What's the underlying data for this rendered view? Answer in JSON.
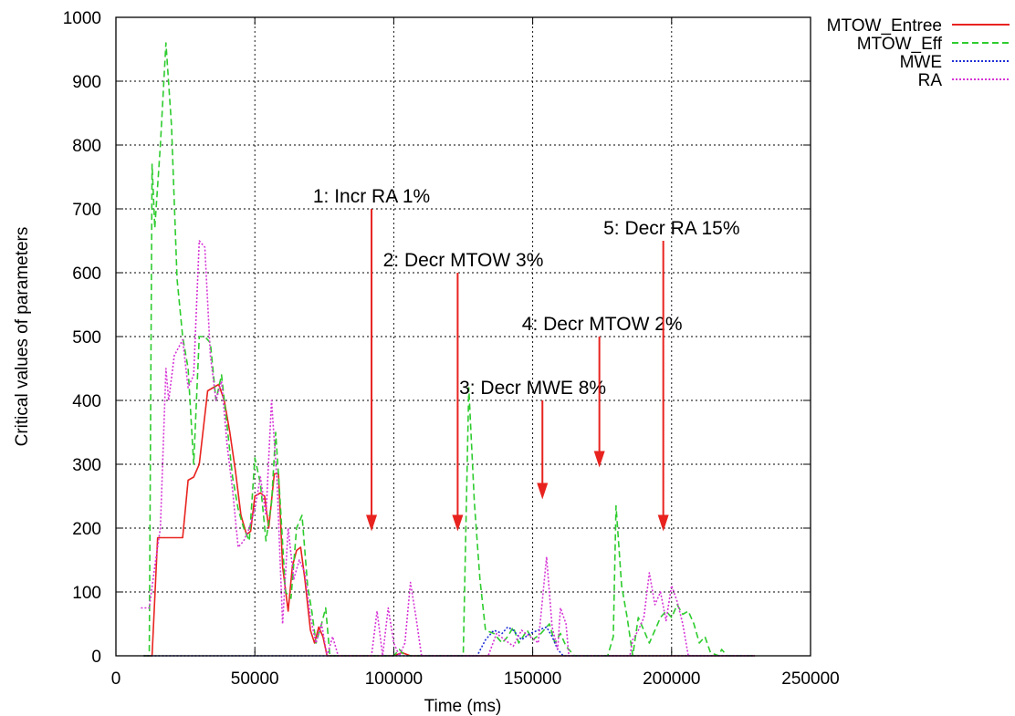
{
  "chart_data": {
    "type": "line",
    "xlabel": "Time (ms)",
    "ylabel": "Critical values of parameters",
    "xlim": [
      0,
      250000
    ],
    "ylim": [
      0,
      1000
    ],
    "x_ticks": [
      0,
      50000,
      100000,
      150000,
      200000,
      250000
    ],
    "y_ticks": [
      0,
      100,
      200,
      300,
      400,
      500,
      600,
      700,
      800,
      900,
      1000
    ],
    "grid": true,
    "grid_style": "dotted",
    "legend_position": "top-right outside",
    "series": [
      {
        "name": "MTOW_Entree",
        "color": "#e8231f",
        "dash": "solid",
        "points": [
          [
            10000,
            0
          ],
          [
            13000,
            0
          ],
          [
            15000,
            185
          ],
          [
            24000,
            185
          ],
          [
            26000,
            275
          ],
          [
            28000,
            280
          ],
          [
            30000,
            300
          ],
          [
            33000,
            415
          ],
          [
            35000,
            420
          ],
          [
            37000,
            425
          ],
          [
            39000,
            400
          ],
          [
            41000,
            350
          ],
          [
            43000,
            290
          ],
          [
            45000,
            220
          ],
          [
            47000,
            190
          ],
          [
            48500,
            195
          ],
          [
            50000,
            250
          ],
          [
            52000,
            255
          ],
          [
            53500,
            250
          ],
          [
            55000,
            200
          ],
          [
            57000,
            285
          ],
          [
            58500,
            285
          ],
          [
            60000,
            140
          ],
          [
            62000,
            70
          ],
          [
            63500,
            140
          ],
          [
            65000,
            165
          ],
          [
            66500,
            170
          ],
          [
            68000,
            120
          ],
          [
            70000,
            40
          ],
          [
            71500,
            20
          ],
          [
            73000,
            45
          ],
          [
            74500,
            30
          ],
          [
            76000,
            0
          ],
          [
            78000,
            0
          ],
          [
            100000,
            0
          ],
          [
            103000,
            5
          ],
          [
            106000,
            0
          ],
          [
            125000,
            0
          ],
          [
            130000,
            0
          ],
          [
            150000,
            0
          ],
          [
            175000,
            0
          ],
          [
            200000,
            0
          ],
          [
            230000,
            0
          ]
        ]
      },
      {
        "name": "MTOW_Eff",
        "color": "#2ecc2e",
        "dash": "dashed",
        "points": [
          [
            10000,
            0
          ],
          [
            12000,
            0
          ],
          [
            13000,
            770
          ],
          [
            14000,
            670
          ],
          [
            16000,
            800
          ],
          [
            18000,
            960
          ],
          [
            20000,
            830
          ],
          [
            22000,
            590
          ],
          [
            24000,
            500
          ],
          [
            26000,
            450
          ],
          [
            28000,
            300
          ],
          [
            30000,
            500
          ],
          [
            32000,
            500
          ],
          [
            34000,
            490
          ],
          [
            36000,
            400
          ],
          [
            38000,
            440
          ],
          [
            40000,
            360
          ],
          [
            42000,
            280
          ],
          [
            44000,
            230
          ],
          [
            46000,
            200
          ],
          [
            48000,
            180
          ],
          [
            50000,
            310
          ],
          [
            52000,
            270
          ],
          [
            54000,
            180
          ],
          [
            56000,
            240
          ],
          [
            57500,
            350
          ],
          [
            59000,
            250
          ],
          [
            61000,
            100
          ],
          [
            63000,
            90
          ],
          [
            65000,
            200
          ],
          [
            67000,
            220
          ],
          [
            69000,
            110
          ],
          [
            70500,
            70
          ],
          [
            72000,
            20
          ],
          [
            74000,
            50
          ],
          [
            75500,
            75
          ],
          [
            77000,
            0
          ],
          [
            90000,
            0
          ],
          [
            100000,
            0
          ],
          [
            102000,
            10
          ],
          [
            104000,
            0
          ],
          [
            125000,
            0
          ],
          [
            127000,
            420
          ],
          [
            129000,
            240
          ],
          [
            131000,
            120
          ],
          [
            133000,
            40
          ],
          [
            136000,
            35
          ],
          [
            139000,
            20
          ],
          [
            141000,
            30
          ],
          [
            143000,
            45
          ],
          [
            145000,
            20
          ],
          [
            148000,
            40
          ],
          [
            150000,
            25
          ],
          [
            153000,
            35
          ],
          [
            156000,
            50
          ],
          [
            158000,
            20
          ],
          [
            160000,
            35
          ],
          [
            162000,
            15
          ],
          [
            165000,
            0
          ],
          [
            177000,
            0
          ],
          [
            179000,
            30
          ],
          [
            180000,
            235
          ],
          [
            182000,
            110
          ],
          [
            184000,
            60
          ],
          [
            186000,
            0
          ],
          [
            188000,
            60
          ],
          [
            190000,
            40
          ],
          [
            192000,
            20
          ],
          [
            194000,
            40
          ],
          [
            196000,
            60
          ],
          [
            198000,
            70
          ],
          [
            200000,
            60
          ],
          [
            202000,
            80
          ],
          [
            204000,
            65
          ],
          [
            206000,
            70
          ],
          [
            208000,
            50
          ],
          [
            210000,
            20
          ],
          [
            212000,
            30
          ],
          [
            214000,
            5
          ],
          [
            217000,
            0
          ],
          [
            218000,
            10
          ],
          [
            220000,
            0
          ],
          [
            230000,
            0
          ]
        ]
      },
      {
        "name": "MWE",
        "color": "#1f2fd6",
        "dash": "dotted",
        "points": [
          [
            10000,
            0
          ],
          [
            130000,
            0
          ],
          [
            133000,
            25
          ],
          [
            136000,
            40
          ],
          [
            139000,
            35
          ],
          [
            141000,
            45
          ],
          [
            143000,
            40
          ],
          [
            146000,
            25
          ],
          [
            149000,
            35
          ],
          [
            152000,
            40
          ],
          [
            155000,
            45
          ],
          [
            157000,
            30
          ],
          [
            159000,
            10
          ],
          [
            161000,
            0
          ],
          [
            230000,
            0
          ]
        ]
      },
      {
        "name": "RA",
        "color": "#d633d6",
        "dash": "dotted",
        "points": [
          [
            9000,
            75
          ],
          [
            12000,
            75
          ],
          [
            14000,
            140
          ],
          [
            16000,
            200
          ],
          [
            18000,
            450
          ],
          [
            19000,
            400
          ],
          [
            21000,
            470
          ],
          [
            24000,
            495
          ],
          [
            26000,
            420
          ],
          [
            28000,
            440
          ],
          [
            30000,
            650
          ],
          [
            32000,
            640
          ],
          [
            34000,
            470
          ],
          [
            36000,
            400
          ],
          [
            38000,
            430
          ],
          [
            40000,
            330
          ],
          [
            42000,
            260
          ],
          [
            44000,
            170
          ],
          [
            46000,
            180
          ],
          [
            48000,
            200
          ],
          [
            50000,
            230
          ],
          [
            52000,
            280
          ],
          [
            54000,
            220
          ],
          [
            56000,
            400
          ],
          [
            58000,
            270
          ],
          [
            60000,
            50
          ],
          [
            62000,
            200
          ],
          [
            64000,
            120
          ],
          [
            66000,
            150
          ],
          [
            68000,
            130
          ],
          [
            70000,
            60
          ],
          [
            72000,
            20
          ],
          [
            74000,
            50
          ],
          [
            76000,
            0
          ],
          [
            78000,
            30
          ],
          [
            80000,
            0
          ],
          [
            92000,
            0
          ],
          [
            94000,
            70
          ],
          [
            96000,
            0
          ],
          [
            98000,
            75
          ],
          [
            100000,
            20
          ],
          [
            102000,
            0
          ],
          [
            104000,
            20
          ],
          [
            106000,
            115
          ],
          [
            108000,
            60
          ],
          [
            110000,
            0
          ],
          [
            134000,
            0
          ],
          [
            137000,
            35
          ],
          [
            140000,
            25
          ],
          [
            143000,
            15
          ],
          [
            146000,
            40
          ],
          [
            149000,
            30
          ],
          [
            152000,
            20
          ],
          [
            155000,
            155
          ],
          [
            157000,
            45
          ],
          [
            159000,
            10
          ],
          [
            160000,
            75
          ],
          [
            162000,
            50
          ],
          [
            163000,
            0
          ],
          [
            185000,
            0
          ],
          [
            186000,
            25
          ],
          [
            188000,
            40
          ],
          [
            190000,
            60
          ],
          [
            192000,
            130
          ],
          [
            194000,
            80
          ],
          [
            196000,
            100
          ],
          [
            198000,
            55
          ],
          [
            200000,
            110
          ],
          [
            202000,
            85
          ],
          [
            204000,
            50
          ],
          [
            206000,
            0
          ],
          [
            210000,
            0
          ],
          [
            230000,
            0
          ]
        ]
      }
    ],
    "annotations": [
      {
        "text": "1: Incr RA 1%",
        "label_x": 92000,
        "label_y": 710,
        "arrow_x": 92000,
        "arrow_from": 700,
        "arrow_to": 195
      },
      {
        "text": "2: Decr MTOW 3%",
        "label_x": 125000,
        "label_y": 610,
        "arrow_x": 123000,
        "arrow_from": 600,
        "arrow_to": 195
      },
      {
        "text": "3: Decr MWE 8%",
        "label_x": 150000,
        "label_y": 410,
        "arrow_x": 153500,
        "arrow_from": 400,
        "arrow_to": 245
      },
      {
        "text": "4: Decr MTOW 2%",
        "label_x": 175000,
        "label_y": 510,
        "arrow_x": 174000,
        "arrow_from": 500,
        "arrow_to": 295
      },
      {
        "text": "5: Decr RA 15%",
        "label_x": 200000,
        "label_y": 660,
        "arrow_x": 197000,
        "arrow_from": 650,
        "arrow_to": 195
      }
    ],
    "arrow_color": "#e8231f"
  }
}
